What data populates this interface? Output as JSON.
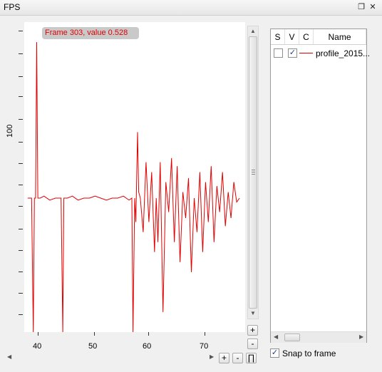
{
  "window": {
    "title": "FPS",
    "float_icon": "restore-icon",
    "close_icon": "close-icon"
  },
  "plot": {
    "tooltip": "Frame 303, value 0.528",
    "ylabel": "100",
    "x_ticks": [
      "40",
      "50",
      "60",
      "70"
    ],
    "zoom_plus": "+",
    "zoom_minus": "-",
    "h_plus": "+",
    "h_minus": "-",
    "fit": "∏",
    "line_color": "#e00000"
  },
  "table": {
    "headers": [
      "S",
      "V",
      "C",
      "Name"
    ],
    "rows": [
      {
        "s": false,
        "v": true,
        "name": "profile_2015..."
      }
    ]
  },
  "snap": {
    "label": "Snap to frame",
    "checked": true
  },
  "chart_data": {
    "type": "line",
    "xlim": [
      39,
      78
    ],
    "ylabel": "100",
    "series": [
      {
        "x": [
          39.6,
          40.2,
          40.3,
          40.6,
          40.8,
          41.0,
          41.2,
          41.4,
          41.8,
          42.5,
          43.5,
          44.5,
          45.5,
          45.8,
          46.0,
          46.2,
          46.6,
          47.5,
          48.5,
          49.5,
          50.5,
          51.5,
          52.5,
          53.5,
          54.5,
          55.5,
          56.5,
          57.0,
          57.5,
          58.0,
          58.2,
          58.5,
          58.7,
          59.0,
          59.2,
          59.5,
          60.0,
          60.5,
          61.0,
          61.5,
          62.0,
          62.3,
          62.6,
          63.0,
          63.5,
          64.0,
          64.5,
          65.0,
          65.5,
          66.0,
          66.5,
          67.0,
          67.5,
          68.0,
          68.5,
          69.0,
          69.5,
          70.0,
          70.5,
          71.0,
          71.5,
          72.0,
          72.5,
          73.0,
          73.5,
          74.0,
          74.5,
          75.0,
          75.5,
          76.0,
          76.5,
          77.0
        ],
        "y": [
          42,
          42,
          42,
          -25,
          42,
          42,
          120,
          42,
          42,
          43,
          41,
          42,
          42,
          -25,
          42,
          42,
          42,
          43,
          41,
          42,
          42,
          43,
          42,
          41,
          42,
          42,
          43,
          42,
          41,
          42,
          -25,
          42,
          30,
          75,
          45,
          42,
          25,
          60,
          30,
          55,
          15,
          42,
          20,
          60,
          -15,
          50,
          35,
          62,
          20,
          58,
          10,
          45,
          32,
          52,
          5,
          42,
          25,
          55,
          15,
          50,
          30,
          58,
          20,
          48,
          35,
          55,
          28,
          45,
          32,
          50,
          40,
          42
        ]
      }
    ]
  }
}
